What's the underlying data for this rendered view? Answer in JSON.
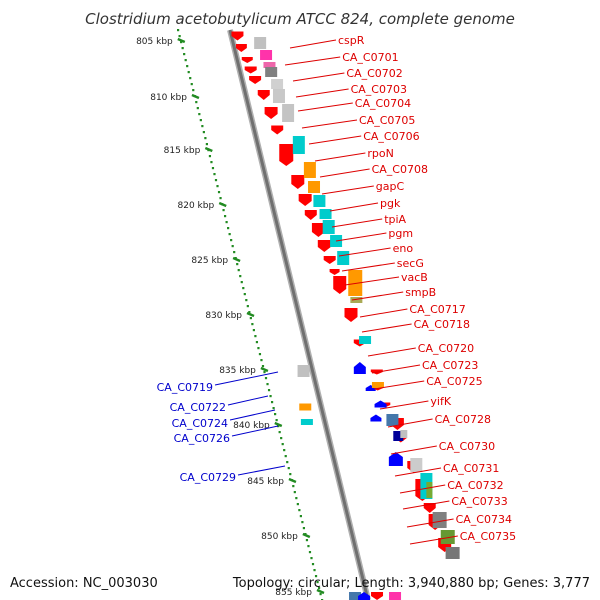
{
  "title": "Clostridium acetobutylicum ATCC 824, complete genome",
  "accession": "Accession: NC_003030",
  "topology": "Topology: circular; Length: 3,940,880 bp; Genes: 3,777",
  "colors": {
    "backbone": "#808080",
    "forward_label": "#dd0000",
    "reverse_label": "#0000cc",
    "ruler": "#228b22",
    "gene_red": "#ff0000",
    "gene_blue": "#0000ff"
  },
  "ruler_labels": [
    "805 kbp",
    "810 kbp",
    "815 kbp",
    "820 kbp",
    "825 kbp",
    "830 kbp",
    "835 kbp",
    "840 kbp",
    "845 kbp",
    "850 kbp",
    "855 kbp"
  ],
  "forward_genes": [
    "cspR",
    "CA_C0701",
    "CA_C0702",
    "CA_C0703",
    "CA_C0704",
    "CA_C0705",
    "CA_C0706",
    "rpoN",
    "CA_C0708",
    "gapC",
    "pgk",
    "tpiA",
    "pgm",
    "eno",
    "secG",
    "vacB",
    "smpB",
    "CA_C0717",
    "CA_C0718",
    "CA_C0720",
    "CA_C0723",
    "CA_C0725",
    "yifK",
    "CA_C0728",
    "CA_C0730",
    "CA_C0731",
    "CA_C0732",
    "CA_C0733",
    "CA_C0734",
    "CA_C0735"
  ],
  "reverse_genes": [
    "CA_C0719",
    "CA_C0722",
    "CA_C0724",
    "CA_C0726",
    "CA_C0729"
  ]
}
